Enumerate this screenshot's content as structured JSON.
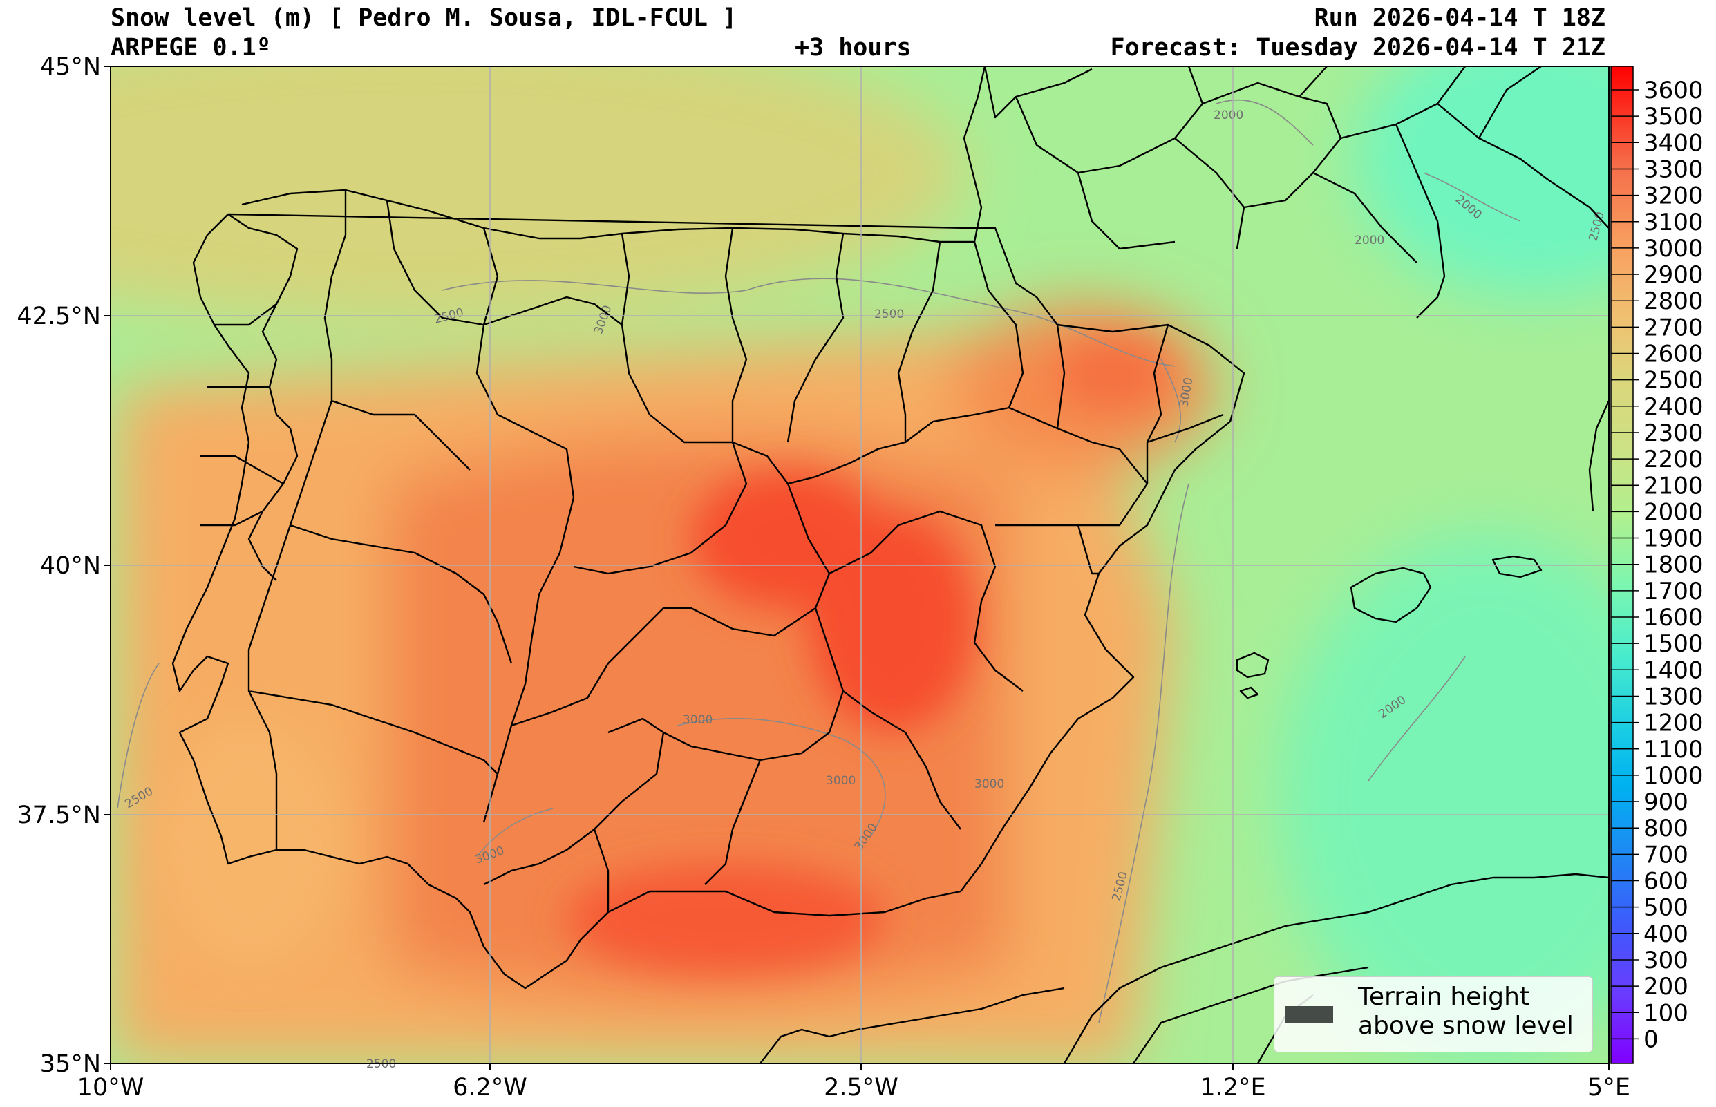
{
  "header": {
    "title": "Snow level (m) [ Pedro M. Sousa, IDL-FCUL ]",
    "model": "ARPEGE 0.1º",
    "lead_time": "+3 hours",
    "run": "Run 2026-04-14 T 18Z",
    "forecast": "Forecast: Tuesday 2026-04-14 T 21Z"
  },
  "map": {
    "region": "Iberian Peninsula",
    "lon_labels": [
      "10°W",
      "6.2°W",
      "2.5°W",
      "1.2°E",
      "5°E"
    ],
    "lat_labels": [
      "45°N",
      "42.5°N",
      "40°N",
      "37.5°N",
      "35°N"
    ],
    "grid": true,
    "contour_labels": [
      "2000",
      "2000",
      "2000",
      "2000",
      "2500",
      "2500",
      "2500",
      "2500",
      "2500",
      "3000",
      "3000",
      "3000",
      "3000",
      "3000",
      "3000",
      "3000",
      "2500"
    ]
  },
  "colorbar": {
    "levels": [
      "3600",
      "3500",
      "3400",
      "3300",
      "3200",
      "3100",
      "3000",
      "2900",
      "2800",
      "2700",
      "2600",
      "2500",
      "2400",
      "2300",
      "2200",
      "2100",
      "2000",
      "1900",
      "1800",
      "1700",
      "1600",
      "1500",
      "1400",
      "1300",
      "1200",
      "1100",
      "1000",
      "900",
      "800",
      "700",
      "600",
      "500",
      "400",
      "300",
      "200",
      "100",
      "0"
    ],
    "colors": {
      "3600": "#ff0000",
      "3000": "#f56e4a",
      "2500": "#d6d67e",
      "2000": "#b1f08e",
      "1500": "#6cffbb",
      "1000": "#00b2f0",
      "500": "#3d5afb",
      "0": "#8000ff"
    }
  },
  "legend": {
    "label": "Terrain height\nabove snow level",
    "swatch_color": "#454b46"
  }
}
